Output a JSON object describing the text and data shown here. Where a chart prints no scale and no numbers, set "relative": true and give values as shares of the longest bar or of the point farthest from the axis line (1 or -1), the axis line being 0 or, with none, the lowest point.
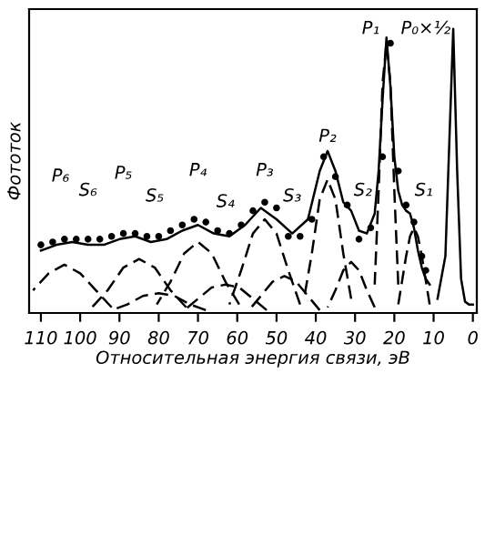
{
  "chart_data": {
    "type": "line",
    "relative": true,
    "xlabel": "Относительная энергия связи, эВ",
    "ylabel": "Фототок",
    "xlim": [
      113,
      -1
    ],
    "xticks": [
      110,
      100,
      90,
      80,
      70,
      60,
      50,
      40,
      30,
      20,
      10,
      0
    ],
    "grid": false,
    "legend": false,
    "series": [
      {
        "color": "#000000",
        "line_style": "solid",
        "x": [
          110,
          106,
          102,
          98,
          94,
          90,
          86,
          82,
          78,
          74,
          70,
          66,
          62,
          58,
          54,
          50,
          46,
          42,
          39,
          37,
          35,
          33,
          31,
          29,
          27,
          25,
          24,
          23,
          22,
          21,
          20,
          19,
          18,
          17,
          16,
          15,
          14,
          13,
          12,
          11
        ],
        "values": [
          0.22,
          0.24,
          0.25,
          0.24,
          0.24,
          0.26,
          0.27,
          0.25,
          0.26,
          0.29,
          0.31,
          0.28,
          0.27,
          0.31,
          0.37,
          0.33,
          0.28,
          0.33,
          0.5,
          0.57,
          0.5,
          0.39,
          0.36,
          0.29,
          0.28,
          0.35,
          0.5,
          0.75,
          0.97,
          0.8,
          0.55,
          0.43,
          0.38,
          0.36,
          0.35,
          0.3,
          0.22,
          0.16,
          0.12,
          0.1
        ]
      },
      {
        "color": "#000000",
        "line_style": "solid",
        "x": [
          9,
          7,
          6,
          5,
          4,
          3,
          2,
          1,
          0
        ],
        "values": [
          0.05,
          0.2,
          0.6,
          1.0,
          0.5,
          0.12,
          0.04,
          0.03,
          0.03
        ]
      },
      {
        "type": "scatter",
        "color": "#000000",
        "marker": "circle",
        "x": [
          110,
          107,
          104,
          101,
          98,
          95,
          92,
          89,
          86,
          83,
          80,
          77,
          74,
          71,
          68,
          65,
          62,
          59,
          56,
          53,
          50,
          47,
          44,
          41,
          38,
          35,
          32,
          29,
          26,
          23,
          21,
          19,
          17,
          15,
          13,
          12
        ],
        "values": [
          0.24,
          0.25,
          0.26,
          0.26,
          0.26,
          0.26,
          0.27,
          0.28,
          0.28,
          0.27,
          0.27,
          0.29,
          0.31,
          0.33,
          0.32,
          0.29,
          0.28,
          0.31,
          0.36,
          0.39,
          0.37,
          0.27,
          0.27,
          0.33,
          0.55,
          0.48,
          0.38,
          0.26,
          0.3,
          0.55,
          0.95,
          0.5,
          0.38,
          0.32,
          0.2,
          0.15
        ]
      },
      {
        "type": "line",
        "color": "#000000",
        "line_style": "dashed",
        "x": [
          92,
          96,
          100,
          104,
          108,
          112
        ],
        "values": [
          0.02,
          0.08,
          0.14,
          0.17,
          0.14,
          0.08
        ]
      },
      {
        "type": "line",
        "color": "#000000",
        "line_style": "dashed",
        "x": [
          73,
          77,
          81,
          85,
          89,
          93,
          97
        ],
        "values": [
          0.02,
          0.08,
          0.16,
          0.19,
          0.16,
          0.08,
          0.02
        ]
      },
      {
        "type": "line",
        "color": "#000000",
        "line_style": "dashed",
        "x": [
          68,
          72,
          76,
          80,
          84,
          88,
          92
        ],
        "values": [
          0.01,
          0.03,
          0.06,
          0.07,
          0.06,
          0.03,
          0.01
        ]
      },
      {
        "type": "line",
        "color": "#000000",
        "line_style": "dashed",
        "x": [
          59.5,
          63,
          66.5,
          70,
          73.5,
          77,
          80.5
        ],
        "values": [
          0.03,
          0.11,
          0.21,
          0.25,
          0.21,
          0.11,
          0.03
        ]
      },
      {
        "type": "line",
        "color": "#000000",
        "line_style": "dashed",
        "x": [
          52.5,
          56,
          59.5,
          63,
          66.5,
          70,
          73.5
        ],
        "values": [
          0.01,
          0.05,
          0.09,
          0.1,
          0.09,
          0.05,
          0.01
        ]
      },
      {
        "type": "line",
        "color": "#000000",
        "line_style": "dashed",
        "x": [
          44,
          47,
          50,
          53,
          56,
          59,
          62
        ],
        "values": [
          0.03,
          0.15,
          0.28,
          0.33,
          0.28,
          0.15,
          0.03
        ]
      },
      {
        "type": "line",
        "color": "#000000",
        "line_style": "dashed",
        "x": [
          39,
          42,
          45,
          48,
          51,
          54,
          57
        ],
        "values": [
          0.01,
          0.06,
          0.11,
          0.13,
          0.11,
          0.06,
          0.01
        ]
      },
      {
        "type": "line",
        "color": "#000000",
        "line_style": "dashed",
        "x": [
          31,
          33,
          35,
          37,
          39,
          41,
          43
        ],
        "values": [
          0.05,
          0.21,
          0.4,
          0.47,
          0.4,
          0.21,
          0.05
        ]
      },
      {
        "type": "line",
        "color": "#000000",
        "line_style": "dashed",
        "x": [
          25,
          27,
          29,
          31,
          33,
          35,
          37
        ],
        "values": [
          0.02,
          0.08,
          0.15,
          0.18,
          0.15,
          0.08,
          0.02
        ]
      },
      {
        "type": "line",
        "color": "#000000",
        "line_style": "dashed",
        "x": [
          19,
          20,
          21,
          22,
          23,
          24,
          25
        ],
        "values": [
          0.1,
          0.43,
          0.81,
          0.95,
          0.81,
          0.43,
          0.1
        ]
      },
      {
        "type": "line",
        "color": "#000000",
        "line_style": "dashed",
        "x": [
          11,
          13,
          14,
          15,
          16,
          17,
          19
        ],
        "values": [
          0.03,
          0.2,
          0.27,
          0.3,
          0.27,
          0.2,
          0.03
        ]
      }
    ],
    "annotations": [
      "P₆",
      "S₆",
      "P₅",
      "S₅",
      "P₄",
      "S₄",
      "P₃",
      "S₃",
      "P₂",
      "S₂",
      "P₁",
      "S₁",
      "P₀×½"
    ]
  }
}
